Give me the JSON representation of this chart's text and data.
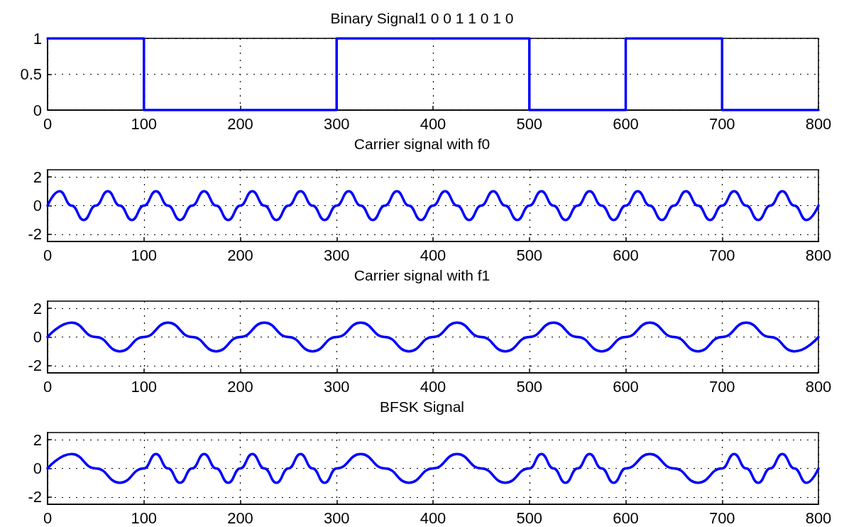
{
  "chart_data": [
    {
      "type": "step",
      "title": "Binary Signal1 0 0 1 1 0 1 0",
      "x": [
        0,
        100,
        300,
        500,
        600,
        700,
        800
      ],
      "values": [
        1,
        0,
        1,
        0,
        1,
        0,
        0
      ],
      "color": "#0000ff",
      "xlim": [
        0,
        800
      ],
      "xticks": [
        0,
        100,
        200,
        300,
        400,
        500,
        600,
        700,
        800
      ],
      "ylim": [
        0,
        1
      ],
      "yticks": [
        0,
        0.5,
        1
      ],
      "grid": true
    },
    {
      "type": "line",
      "title": "Carrier signal with f0",
      "x": [
        0,
        12.5,
        25,
        37.5,
        50,
        62.5,
        75,
        87.5,
        100,
        112.5,
        125,
        137.5,
        150,
        162.5,
        175,
        187.5,
        200,
        212.5,
        225,
        237.5,
        250,
        262.5,
        275,
        287.5,
        300,
        312.5,
        325,
        337.5,
        350,
        362.5,
        375,
        387.5,
        400,
        412.5,
        425,
        437.5,
        450,
        462.5,
        475,
        487.5,
        500,
        512.5,
        525,
        537.5,
        550,
        562.5,
        575,
        587.5,
        600,
        612.5,
        625,
        637.5,
        650,
        662.5,
        675,
        687.5,
        700,
        712.5,
        725,
        737.5,
        750,
        762.5,
        775,
        787.5,
        800
      ],
      "values": [
        0,
        1,
        0,
        -1,
        0,
        1,
        0,
        -1,
        0,
        1,
        0,
        -1,
        0,
        1,
        0,
        -1,
        0,
        1,
        0,
        -1,
        0,
        1,
        0,
        -1,
        0,
        1,
        0,
        -1,
        0,
        1,
        0,
        -1,
        0,
        1,
        0,
        -1,
        0,
        1,
        0,
        -1,
        0,
        1,
        0,
        -1,
        0,
        1,
        0,
        -1,
        0,
        1,
        0,
        -1,
        0,
        1,
        0,
        -1,
        0,
        1,
        0,
        -1,
        0,
        1,
        0,
        -1,
        0
      ],
      "color": "#0000ff",
      "xlim": [
        0,
        800
      ],
      "xticks": [
        0,
        100,
        200,
        300,
        400,
        500,
        600,
        700,
        800
      ],
      "ylim": [
        -2.5,
        2.5
      ],
      "yticks": [
        -2,
        0,
        2
      ],
      "grid": true
    },
    {
      "type": "line",
      "title": "Carrier signal with f1",
      "x": [
        0,
        25,
        50,
        75,
        100,
        125,
        150,
        175,
        200,
        225,
        250,
        275,
        300,
        325,
        350,
        375,
        400,
        425,
        450,
        475,
        500,
        525,
        550,
        575,
        600,
        625,
        650,
        675,
        700,
        725,
        750,
        775,
        800
      ],
      "values": [
        0,
        1,
        0,
        -1,
        0,
        1,
        0,
        -1,
        0,
        1,
        0,
        -1,
        0,
        1,
        0,
        -1,
        0,
        1,
        0,
        -1,
        0,
        1,
        0,
        -1,
        0,
        1,
        0,
        -1,
        0,
        1,
        0,
        -1,
        0
      ],
      "color": "#0000ff",
      "xlim": [
        0,
        800
      ],
      "xticks": [
        0,
        100,
        200,
        300,
        400,
        500,
        600,
        700,
        800
      ],
      "ylim": [
        -2.5,
        2.5
      ],
      "yticks": [
        -2,
        0,
        2
      ],
      "grid": true
    },
    {
      "type": "line",
      "title": "BFSK Signal",
      "x": [
        0,
        25,
        50,
        75,
        100,
        112.5,
        125,
        137.5,
        150,
        162.5,
        175,
        187.5,
        200,
        212.5,
        225,
        237.5,
        250,
        262.5,
        275,
        287.5,
        300,
        325,
        350,
        375,
        400,
        425,
        450,
        475,
        500,
        512.5,
        525,
        537.5,
        550,
        562.5,
        575,
        587.5,
        600,
        625,
        650,
        675,
        700,
        712.5,
        725,
        737.5,
        750,
        762.5,
        775,
        787.5,
        800
      ],
      "values": [
        0,
        1,
        0,
        -1,
        0,
        1,
        0,
        -1,
        0,
        1,
        0,
        -1,
        0,
        1,
        0,
        -1,
        0,
        1,
        0,
        -1,
        0,
        1,
        0,
        -1,
        0,
        1,
        0,
        -1,
        0,
        1,
        0,
        -1,
        0,
        1,
        0,
        -1,
        0,
        1,
        0,
        -1,
        0,
        1,
        0,
        -1,
        0,
        1,
        0,
        -1,
        0
      ],
      "color": "#0000ff",
      "xlim": [
        0,
        800
      ],
      "xticks": [
        0,
        100,
        200,
        300,
        400,
        500,
        600,
        700,
        800
      ],
      "ylim": [
        -2.5,
        2.5
      ],
      "yticks": [
        -2,
        0,
        2
      ],
      "grid": true
    }
  ]
}
